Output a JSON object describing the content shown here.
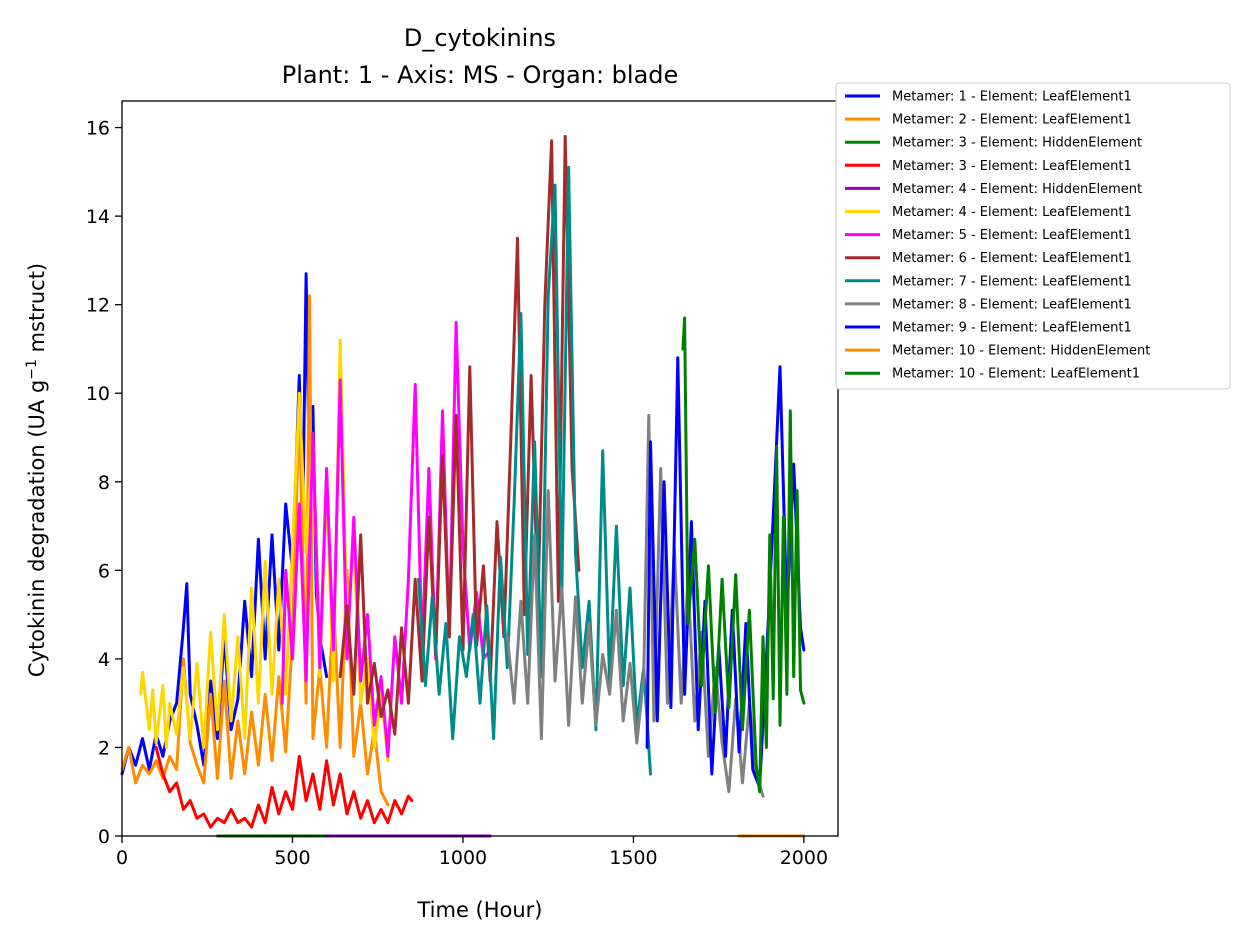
{
  "chart_data": {
    "type": "line",
    "title": "D_cytokinins",
    "subtitle": "Plant: 1 - Axis: MS - Organ: blade",
    "xlabel": "Time (Hour)",
    "ylabel_main": "Cytokinin degradation (UA g",
    "ylabel_sup": "−1",
    "ylabel_tail": " mstruct)",
    "xlim": [
      0,
      2100
    ],
    "ylim": [
      0,
      16.6
    ],
    "xticks": [
      0,
      500,
      1000,
      1500,
      2000
    ],
    "xtick_labels": [
      "0",
      "500",
      "1000",
      "1500",
      "2000"
    ],
    "yticks": [
      0,
      2,
      4,
      6,
      8,
      10,
      12,
      14,
      16
    ],
    "ytick_labels": [
      "0",
      "2",
      "4",
      "6",
      "8",
      "10",
      "12",
      "14",
      "16"
    ],
    "grid": false,
    "legend_position": "outside-top-right",
    "series": [
      {
        "name": "Metamer: 1 - Element: LeafElement1",
        "color": "#0000ff",
        "x": [
          0,
          20,
          40,
          60,
          80,
          100,
          120,
          140,
          160,
          180,
          190,
          200,
          220,
          240,
          260,
          280,
          300,
          320,
          340,
          360,
          380,
          400,
          420,
          440,
          460,
          480,
          500,
          520,
          530,
          540,
          550,
          560,
          570,
          580,
          600
        ],
        "y": [
          1.4,
          2.0,
          1.6,
          2.2,
          1.5,
          2.3,
          1.8,
          2.6,
          3.0,
          4.7,
          5.7,
          3.2,
          2.5,
          1.6,
          3.5,
          2.2,
          4.5,
          2.4,
          3.1,
          5.3,
          3.6,
          6.7,
          4.0,
          6.8,
          4.2,
          7.5,
          6.0,
          10.4,
          7.0,
          12.7,
          8.0,
          9.7,
          5.5,
          4.5,
          3.6
        ]
      },
      {
        "name": "Metamer: 2 - Element: LeafElement1",
        "color": "#ff8c00",
        "x": [
          0,
          20,
          40,
          60,
          80,
          100,
          120,
          140,
          160,
          180,
          200,
          220,
          240,
          260,
          280,
          300,
          320,
          340,
          360,
          380,
          400,
          420,
          440,
          460,
          480,
          500,
          520,
          540,
          550,
          560,
          580,
          600,
          620,
          640,
          660,
          680,
          700,
          720,
          740,
          760,
          780
        ],
        "y": [
          1.5,
          2.0,
          1.2,
          1.6,
          1.4,
          1.7,
          1.3,
          1.8,
          1.5,
          4.0,
          2.1,
          1.6,
          1.2,
          3.2,
          1.3,
          3.5,
          1.3,
          2.6,
          1.4,
          2.8,
          1.6,
          3.2,
          1.7,
          3.6,
          1.9,
          4.5,
          9.8,
          3.0,
          12.2,
          2.2,
          3.8,
          2.0,
          5.3,
          2.0,
          6.0,
          1.8,
          3.0,
          1.4,
          2.4,
          1.0,
          0.7
        ]
      },
      {
        "name": "Metamer: 3 - Element: HiddenElement",
        "color": "#008000",
        "x": [
          280,
          1080
        ],
        "y": [
          0.0,
          0.0
        ]
      },
      {
        "name": "Metamer: 3 - Element: LeafElement1",
        "color": "#ff0000",
        "x": [
          100,
          120,
          140,
          160,
          180,
          200,
          220,
          240,
          260,
          280,
          300,
          320,
          340,
          360,
          380,
          400,
          420,
          440,
          460,
          480,
          500,
          520,
          540,
          560,
          580,
          600,
          620,
          640,
          660,
          680,
          700,
          720,
          740,
          760,
          780,
          800,
          820,
          840,
          850
        ],
        "y": [
          2.0,
          1.4,
          1.0,
          1.2,
          0.6,
          0.8,
          0.4,
          0.5,
          0.2,
          0.4,
          0.3,
          0.6,
          0.3,
          0.4,
          0.2,
          0.7,
          0.3,
          1.1,
          0.5,
          1.0,
          0.6,
          1.8,
          0.8,
          1.4,
          0.6,
          1.7,
          0.7,
          1.4,
          0.5,
          1.0,
          0.4,
          0.8,
          0.3,
          0.6,
          0.3,
          0.8,
          0.5,
          0.9,
          0.8
        ]
      },
      {
        "name": "Metamer: 4 - Element: HiddenElement",
        "color": "#9400d3",
        "x": [
          600,
          1080
        ],
        "y": [
          0.0,
          0.0
        ]
      },
      {
        "name": "Metamer: 4 - Element: LeafElement1",
        "color": "#ffd700",
        "x": [
          55,
          60,
          80,
          90,
          100,
          120,
          130,
          140,
          160,
          180,
          200,
          220,
          240,
          260,
          280,
          300,
          320,
          340,
          360,
          380,
          400,
          420,
          440,
          460,
          480,
          500,
          520,
          540,
          560,
          580,
          600,
          620,
          640,
          660,
          680,
          700,
          720,
          740,
          760,
          780
        ],
        "y": [
          3.2,
          3.7,
          2.4,
          3.3,
          2.1,
          3.4,
          2.0,
          3.0,
          2.3,
          3.8,
          2.2,
          3.9,
          2.0,
          4.6,
          2.4,
          5.0,
          2.6,
          4.5,
          2.2,
          5.6,
          3.0,
          6.2,
          3.2,
          5.8,
          3.2,
          6.5,
          10.0,
          6.4,
          9.0,
          3.6,
          7.9,
          3.5,
          11.2,
          4.8,
          6.6,
          3.0,
          4.0,
          2.0,
          3.2,
          1.7
        ]
      },
      {
        "name": "Metamer: 5 - Element: LeafElement1",
        "color": "#ff00ff",
        "x": [
          470,
          480,
          500,
          520,
          540,
          560,
          580,
          600,
          620,
          640,
          660,
          680,
          700,
          720,
          740,
          760,
          780,
          800,
          820,
          840,
          860,
          880,
          900,
          920,
          940,
          960,
          980,
          1000,
          1020,
          1040,
          1060,
          1080
        ],
        "y": [
          3.0,
          6.0,
          4.0,
          7.5,
          3.5,
          9.1,
          3.8,
          8.3,
          4.2,
          10.3,
          4.0,
          7.2,
          3.5,
          5.0,
          2.5,
          3.6,
          1.8,
          4.5,
          3.0,
          5.8,
          10.2,
          4.2,
          8.3,
          4.0,
          9.6,
          4.5,
          11.6,
          6.5,
          4.2,
          5.5,
          4.0,
          4.2
        ]
      },
      {
        "name": "Metamer: 6 - Element: LeafElement1",
        "color": "#a52a2a",
        "x": [
          640,
          660,
          680,
          700,
          720,
          740,
          760,
          780,
          800,
          820,
          840,
          860,
          880,
          900,
          920,
          940,
          960,
          980,
          1000,
          1020,
          1040,
          1060,
          1080,
          1100,
          1120,
          1140,
          1160,
          1180,
          1200,
          1220,
          1240,
          1260,
          1280,
          1300,
          1320,
          1340
        ],
        "y": [
          3.6,
          5.2,
          3.2,
          6.8,
          3.0,
          3.9,
          2.7,
          3.3,
          2.3,
          4.7,
          3.0,
          5.8,
          3.5,
          7.2,
          4.1,
          8.6,
          4.5,
          9.5,
          4.2,
          10.6,
          4.3,
          6.1,
          3.5,
          7.1,
          4.5,
          8.9,
          13.5,
          5.0,
          10.4,
          5.2,
          12.0,
          15.7,
          5.3,
          15.8,
          8.3,
          6.0
        ]
      },
      {
        "name": "Metamer: 7 - Element: LeafElement1",
        "color": "#008b8b",
        "x": [
          870,
          890,
          910,
          930,
          950,
          970,
          990,
          1010,
          1030,
          1050,
          1070,
          1090,
          1110,
          1130,
          1150,
          1170,
          1190,
          1210,
          1230,
          1250,
          1270,
          1290,
          1310,
          1330,
          1350,
          1370,
          1390,
          1410,
          1430,
          1450,
          1470,
          1490,
          1510,
          1530,
          1550
        ],
        "y": [
          5.8,
          3.4,
          5.4,
          3.2,
          4.8,
          2.2,
          4.5,
          3.6,
          5.0,
          3.0,
          5.2,
          2.2,
          6.3,
          3.8,
          7.5,
          11.8,
          4.1,
          8.9,
          3.6,
          12.2,
          14.7,
          5.5,
          15.1,
          6.4,
          3.8,
          5.3,
          2.4,
          8.7,
          3.5,
          7.0,
          3.4,
          5.6,
          2.5,
          3.8,
          1.4
        ]
      },
      {
        "name": "Metamer: 8 - Element: LeafElement1",
        "color": "#808080",
        "x": [
          1130,
          1150,
          1170,
          1190,
          1210,
          1230,
          1250,
          1270,
          1290,
          1310,
          1330,
          1350,
          1370,
          1390,
          1410,
          1430,
          1450,
          1470,
          1490,
          1510,
          1530,
          1545,
          1560,
          1580,
          1600,
          1620,
          1640,
          1660,
          1680,
          1700,
          1720,
          1740,
          1760,
          1780,
          1800,
          1820,
          1840,
          1860,
          1880
        ],
        "y": [
          4.5,
          3.0,
          5.3,
          3.0,
          6.8,
          2.2,
          7.8,
          3.5,
          5.6,
          2.5,
          5.4,
          3.0,
          4.8,
          2.5,
          4.1,
          3.2,
          5.1,
          2.6,
          3.9,
          2.1,
          3.6,
          9.5,
          2.6,
          8.3,
          3.0,
          6.5,
          3.0,
          5.8,
          2.6,
          4.6,
          1.8,
          3.8,
          2.1,
          1.0,
          3.1,
          1.2,
          3.0,
          1.4,
          0.9
        ]
      },
      {
        "name": "Metamer: 9 - Element: LeafElement1",
        "color": "#0000ff",
        "x": [
          1540,
          1550,
          1570,
          1590,
          1610,
          1630,
          1650,
          1670,
          1690,
          1710,
          1730,
          1750,
          1770,
          1790,
          1810,
          1830,
          1850,
          1870,
          1890,
          1910,
          1930,
          1950,
          1970,
          1990,
          2000
        ],
        "y": [
          2.0,
          8.9,
          2.6,
          8.0,
          2.9,
          10.8,
          3.2,
          7.1,
          2.4,
          5.3,
          1.4,
          4.3,
          1.8,
          5.1,
          1.9,
          4.8,
          1.5,
          1.1,
          4.0,
          7.2,
          10.6,
          5.0,
          8.4,
          4.7,
          4.2
        ]
      },
      {
        "name": "Metamer: 10 - Element: HiddenElement",
        "color": "#ff8c00",
        "x": [
          1810,
          2000
        ],
        "y": [
          0.0,
          0.0
        ]
      },
      {
        "name": "Metamer: 10 - Element: LeafElement1",
        "color": "#008000",
        "x": [
          1645,
          1650,
          1660,
          1680,
          1700,
          1720,
          1740,
          1760,
          1780,
          1800,
          1820,
          1840,
          1860,
          1870,
          1880,
          1890,
          1900,
          1910,
          1920,
          1930,
          1940,
          1950,
          1960,
          1970,
          1980,
          1990,
          2000
        ],
        "y": [
          11.0,
          11.7,
          4.8,
          6.7,
          3.4,
          6.1,
          2.8,
          5.8,
          2.9,
          5.9,
          2.4,
          5.1,
          1.6,
          1.0,
          4.5,
          2.0,
          6.8,
          3.1,
          8.8,
          2.5,
          7.2,
          3.2,
          9.6,
          3.6,
          7.8,
          3.3,
          3.0
        ]
      }
    ]
  }
}
